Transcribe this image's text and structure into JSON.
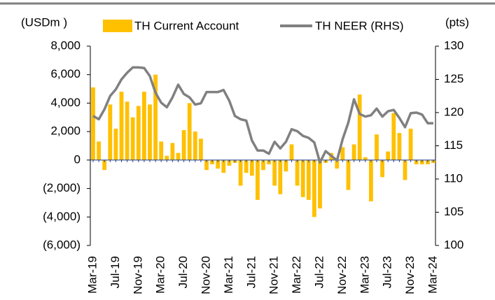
{
  "chart_data": {
    "type": "bar-line",
    "left_axis_label": "(USDm )",
    "right_axis_label": "(pts)",
    "categories": [
      "Mar-19",
      null,
      null,
      null,
      "Jul-19",
      null,
      null,
      null,
      "Nov-19",
      null,
      null,
      null,
      "Mar-20",
      null,
      null,
      null,
      "Jul-20",
      null,
      null,
      null,
      "Nov-20",
      null,
      null,
      null,
      "Mar-21",
      null,
      null,
      null,
      "Jul-21",
      null,
      null,
      null,
      "Nov-21",
      null,
      null,
      null,
      "Mar-22",
      null,
      null,
      null,
      "Jul-22",
      null,
      null,
      null,
      "Nov-22",
      null,
      null,
      null,
      "Mar-23",
      null,
      null,
      null,
      "Jul-23",
      null,
      null,
      null,
      "Nov-23",
      null,
      null,
      null,
      "Mar-24"
    ],
    "series": [
      {
        "name": "TH Current Account",
        "type": "bar",
        "color": "#FFC000",
        "values": [
          5100,
          1300,
          -700,
          3900,
          2200,
          4800,
          4100,
          3000,
          3800,
          4800,
          3900,
          6000,
          1300,
          300,
          1200,
          500,
          2100,
          4000,
          2000,
          1500,
          -700,
          -300,
          -600,
          -900,
          -400,
          -200,
          -1800,
          -900,
          -1100,
          -2800,
          -700,
          -300,
          -1800,
          -2400,
          -800,
          1100,
          -1800,
          -2600,
          -2800,
          -4000,
          -3400,
          -200,
          500,
          -600,
          900,
          -2100,
          1100,
          4600,
          200,
          -2900,
          1800,
          -1200,
          600,
          3300,
          1900,
          -1400,
          2200,
          -300,
          -300,
          -300,
          -200
        ]
      },
      {
        "name": "TH NEER (RHS)",
        "type": "line",
        "axis": "y2",
        "color": "#808080",
        "values": [
          119.5,
          119,
          120.5,
          122.5,
          123.5,
          125,
          126,
          126.8,
          126.8,
          126.7,
          125.5,
          123,
          121.5,
          120.8,
          122.3,
          124.2,
          122.8,
          122.3,
          121.2,
          121.4,
          123.1,
          123.1,
          123.1,
          123.4,
          121.8,
          119.5,
          119,
          118.8,
          115.8,
          114.3,
          114.3,
          113.8,
          115.6,
          114.6,
          115.6,
          117.5,
          117.2,
          116.5,
          116.2,
          115.5,
          112.5,
          114.2,
          113.5,
          112.8,
          116,
          118.5,
          122,
          119.8,
          119.4,
          119.6,
          120.6,
          119.4,
          120.2,
          120.4,
          119.2,
          117.8,
          119.9,
          120,
          119.7,
          118.4,
          118.4
        ]
      }
    ],
    "ylim": [
      -6000,
      8000
    ],
    "yticks": [
      {
        "value": -6000,
        "label": "(6,000)"
      },
      {
        "value": -4000,
        "label": "(4,000)"
      },
      {
        "value": -2000,
        "label": "(2,000)"
      },
      0,
      {
        "value": 2000,
        "label": "2,000"
      },
      {
        "value": 4000,
        "label": "4,000"
      },
      {
        "value": 6000,
        "label": "6,000"
      },
      {
        "value": 8000,
        "label": "8,000"
      }
    ],
    "y2lim": [
      100,
      130
    ],
    "y2ticks": [
      100,
      105,
      110,
      115,
      120,
      125,
      130
    ]
  }
}
